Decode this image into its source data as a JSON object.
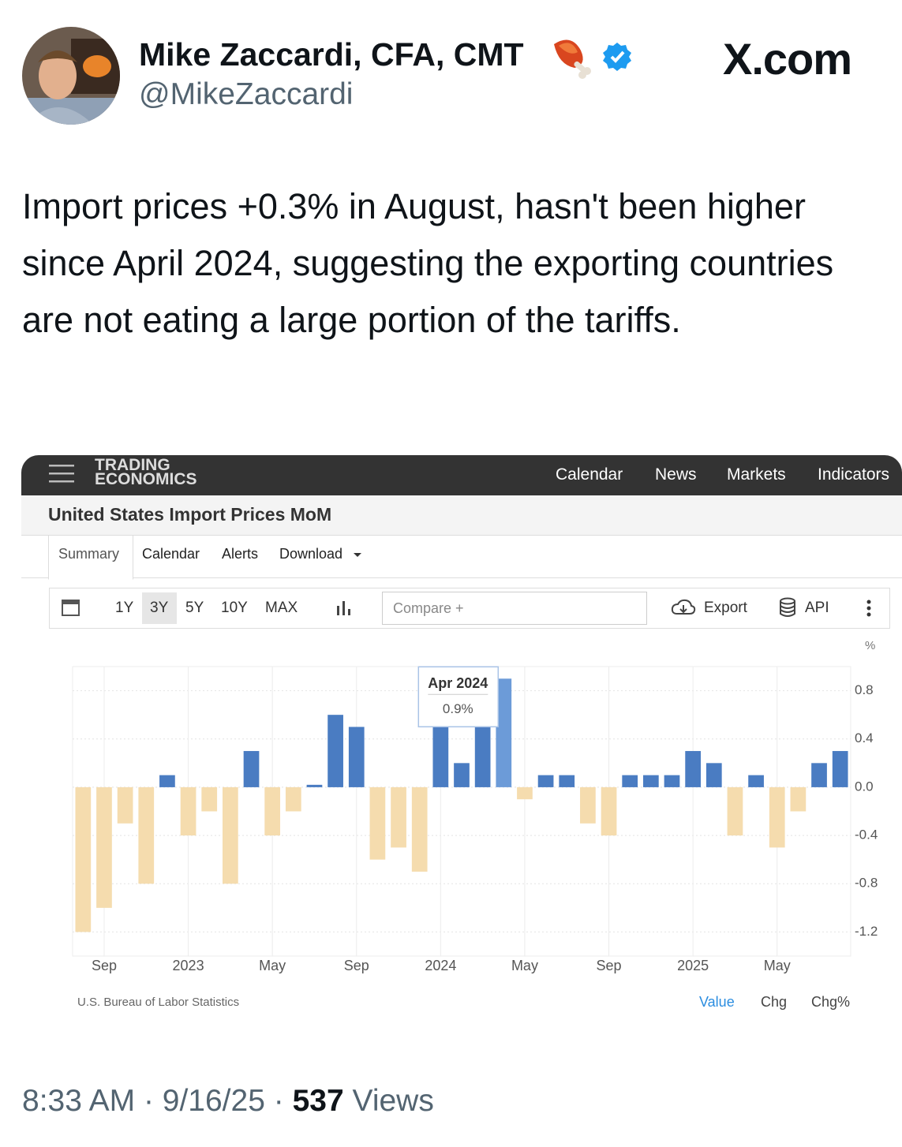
{
  "tweet": {
    "name": "Mike Zaccardi, CFA, CMT",
    "handle": "@MikeZaccardi",
    "site": "X.com",
    "text": "Import prices +0.3% in August, hasn't been higher since April 2024, suggesting the exporting countries are not eating a large portion of the tariffs.",
    "time": "8:33 AM",
    "separator": "·",
    "date": "9/16/25",
    "view_count": "537",
    "views_label": "Views"
  },
  "widget": {
    "logo_top": "TRADING",
    "logo_bottom": "ECONOMICS",
    "nav": [
      "Calendar",
      "News",
      "Markets",
      "Indicators"
    ],
    "page_title": "United States Import Prices MoM",
    "tabs": [
      "Summary",
      "Calendar",
      "Alerts",
      "Download"
    ],
    "ranges": [
      "1Y",
      "3Y",
      "5Y",
      "10Y",
      "MAX"
    ],
    "compare": "Compare +",
    "export": "Export",
    "api": "API",
    "source": "U.S. Bureau of Labor Statistics",
    "modes": [
      "Value",
      "Chg",
      "Chg%"
    ]
  },
  "chart_data": {
    "type": "bar",
    "title": "United States Import Prices MoM",
    "y_unit": "%",
    "categories": [
      null,
      "Sep",
      null,
      null,
      null,
      "2023",
      null,
      null,
      null,
      "May",
      null,
      null,
      null,
      "Sep",
      null,
      null,
      null,
      "2024",
      null,
      null,
      null,
      "May",
      null,
      null,
      null,
      "Sep",
      null,
      null,
      null,
      "2025",
      null,
      null,
      null,
      "May",
      null,
      null,
      null
    ],
    "values": [
      -1.2,
      -1.0,
      -0.3,
      -0.8,
      0.1,
      -0.4,
      -0.2,
      -0.8,
      0.3,
      -0.4,
      -0.2,
      0.02,
      0.6,
      0.5,
      -0.6,
      -0.5,
      -0.7,
      0.8,
      0.2,
      0.6,
      0.9,
      -0.1,
      0.1,
      0.1,
      -0.3,
      -0.4,
      0.1,
      0.1,
      0.1,
      0.3,
      0.2,
      -0.4,
      0.1,
      -0.5,
      -0.2,
      0.2,
      0.3
    ],
    "positive_color": "#4a7cc2",
    "negative_color": "#f5dcae",
    "highlight_color": "#6c9bd8",
    "highlight_index": 20,
    "tooltip": {
      "title": "Apr 2024",
      "text": "0.9%"
    },
    "ylim": [
      -1.4,
      1.0
    ],
    "yticks": [
      0.8,
      0.4,
      {
        "value": 0,
        "label": "0.0"
      },
      -0.4,
      -0.8,
      -1.2
    ],
    "grid": true
  }
}
